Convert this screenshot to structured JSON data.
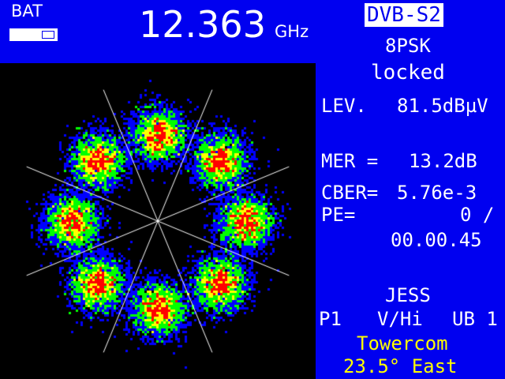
{
  "battery": {
    "label": "BAT",
    "level_percent": 65
  },
  "frequency": {
    "value": "12.363",
    "unit": "GHz"
  },
  "standard": "DVB-S2",
  "modulation": "8PSK",
  "lock_status": "locked",
  "level": {
    "label": "LEV.",
    "value": "81.5dBµV"
  },
  "mer": {
    "label": "MER =",
    "value": "13.2dB"
  },
  "cber": {
    "label": "CBER=",
    "value": "5.76e-3"
  },
  "pe": {
    "label": "PE=",
    "value": "0 /",
    "time": "00.00.45"
  },
  "channel": {
    "name": "JESS",
    "position": "P1",
    "polarization": "V/Hi",
    "ub": "UB 1"
  },
  "satellite": {
    "provider": "Towercom",
    "orbit": "23.5° East"
  },
  "colors": {
    "background": "#0000f0",
    "accent_text": "#ffff00"
  },
  "constellation": {
    "type": "8PSK",
    "points": 8
  }
}
